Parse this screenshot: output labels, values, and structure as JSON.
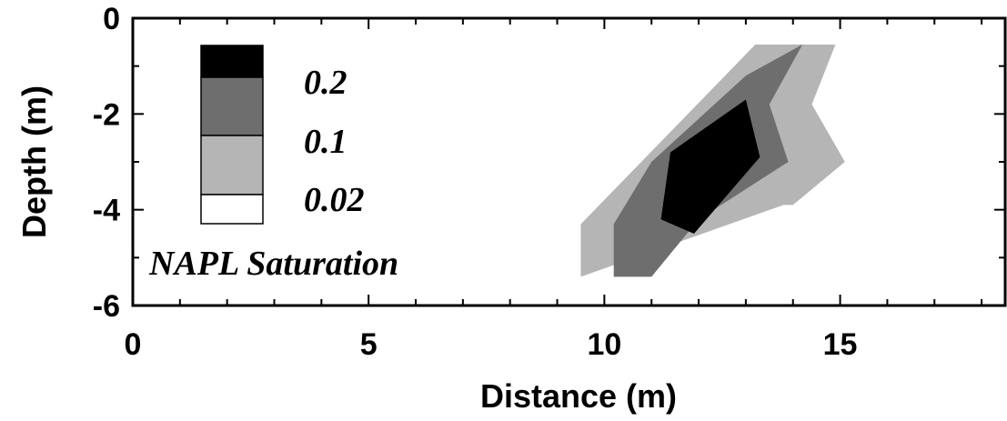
{
  "chart_data": {
    "type": "area",
    "subtype": "filled-contour",
    "xlabel": "Distance (m)",
    "ylabel": "Depth (m)",
    "xlim": [
      0,
      18.5
    ],
    "ylim": [
      -6,
      0
    ],
    "x_ticks": [
      "0",
      "5",
      "10",
      "15"
    ],
    "y_ticks": [
      "0",
      "-2",
      "-4",
      "-6"
    ],
    "legend": {
      "title": "NAPL Saturation",
      "placement": "upper-left",
      "levels": [
        {
          "label": "0.2",
          "color": "#000000"
        },
        {
          "label": "0.1",
          "color": "#6e6e6e"
        },
        {
          "label": "0.02",
          "color": "#b5b5b5"
        },
        {
          "label": "",
          "color": "#ffffff"
        }
      ]
    },
    "series": [
      {
        "level": 0.02,
        "color": "#b5b5b5",
        "x": [
          9.5,
          9.5,
          13.2,
          14.9,
          14.4,
          15.1,
          15.1,
          14.0,
          13.8,
          9.5
        ],
        "y": [
          -5.4,
          -4.3,
          -0.55,
          -0.55,
          -1.8,
          -3.0,
          -3.0,
          -3.9,
          -3.9,
          -5.4
        ]
      },
      {
        "level": 0.1,
        "color": "#6e6e6e",
        "x": [
          10.2,
          10.2,
          11.0,
          13.0,
          14.2,
          13.5,
          13.9,
          12.0,
          11.0,
          10.2
        ],
        "y": [
          -5.4,
          -4.3,
          -3.0,
          -1.2,
          -0.55,
          -1.8,
          -3.0,
          -4.2,
          -5.4,
          -5.4
        ]
      },
      {
        "level": 0.2,
        "color": "#000000",
        "x": [
          11.2,
          11.4,
          13.0,
          13.3,
          11.9,
          11.2
        ],
        "y": [
          -4.2,
          -2.8,
          -1.7,
          -2.9,
          -4.5,
          -4.2
        ]
      }
    ]
  }
}
